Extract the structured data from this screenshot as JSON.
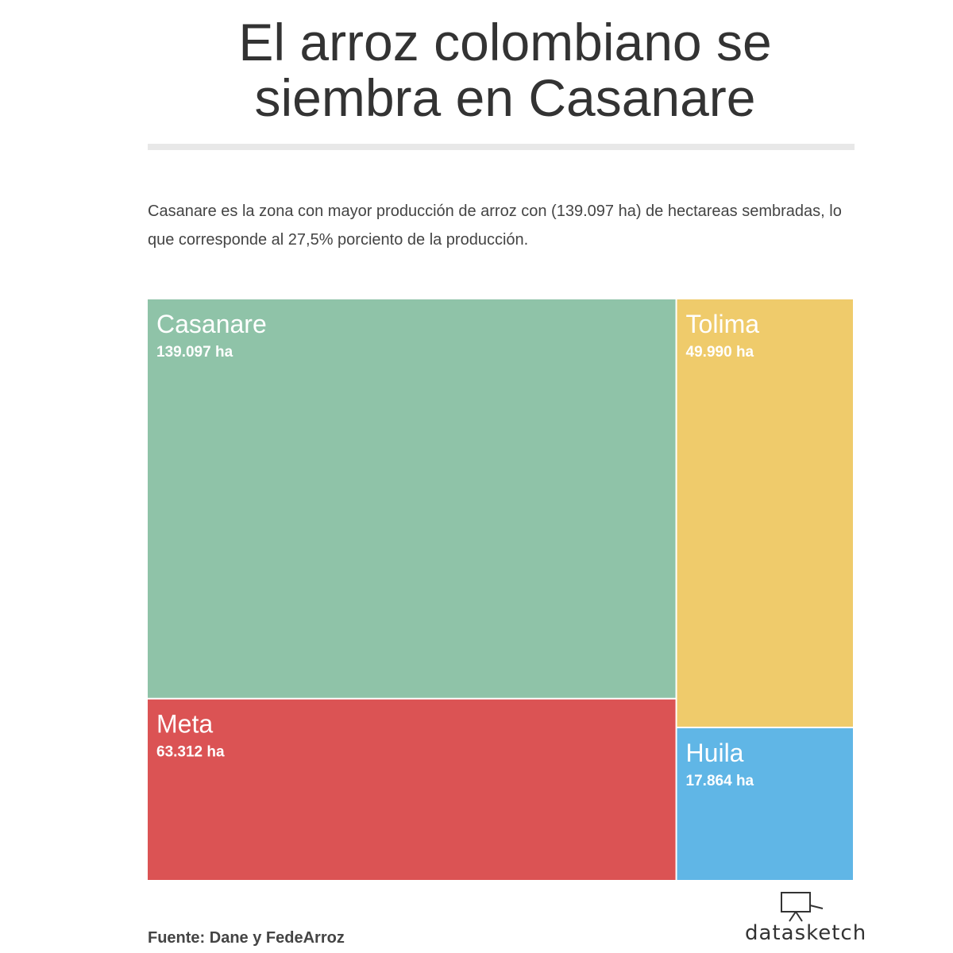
{
  "chart_data": {
    "type": "treemap",
    "title": "El arroz colombiano se siembra en Casanare",
    "subtitle": "Casanare es la zona con mayor producción de arroz con (139.097 ha) de  hectareas sembradas, lo que corresponde al  27,5% porciento de la producción.",
    "categories": [
      "Casanare",
      "Meta",
      "Tolima",
      "Huila"
    ],
    "values": [
      139097,
      63312,
      49990,
      17864
    ],
    "value_labels": [
      "139.097 ha",
      "63.312 ha",
      "49.990 ha",
      "17.864 ha"
    ],
    "colors": [
      "#8fc3a8",
      "#db5354",
      "#efcb6b",
      "#60b6e6"
    ],
    "source": "Fuente:  Dane y FedeArroz",
    "logo": "datasketch"
  }
}
